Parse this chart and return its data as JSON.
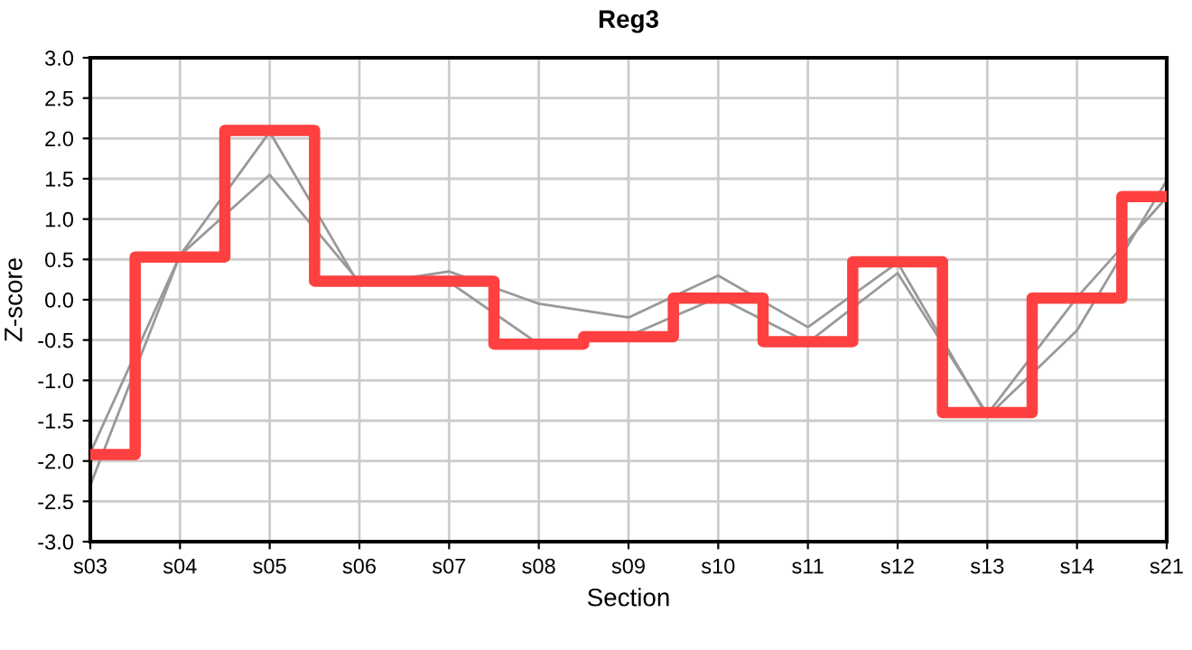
{
  "chart_data": {
    "type": "line",
    "title": "Reg3",
    "xlabel": "Section",
    "ylabel": "Z-score",
    "categories": [
      "s03",
      "s04",
      "s05",
      "s06",
      "s07",
      "s08",
      "s09",
      "s10",
      "s11",
      "s12",
      "s13",
      "s14",
      "s21"
    ],
    "series": [
      {
        "color": "#999999",
        "values": [
          -1.9,
          0.55,
          2.08,
          0.18,
          0.35,
          -0.05,
          -0.22,
          0.3,
          -0.34,
          0.46,
          -1.45,
          -0.38,
          1.48
        ]
      },
      {
        "color": "#999999",
        "values": [
          -2.3,
          0.55,
          1.55,
          0.22,
          0.22,
          -0.55,
          -0.45,
          0.03,
          -0.53,
          0.33,
          -1.42,
          0.03,
          1.27
        ]
      },
      {
        "type": "step",
        "color": "#ff4040",
        "values": [
          -1.92,
          0.53,
          2.1,
          0.23,
          0.23,
          -0.55,
          -0.46,
          0.02,
          -0.52,
          0.47,
          -1.4,
          0.02,
          1.28
        ]
      }
    ],
    "ylim": [
      -3.0,
      3.0
    ],
    "yticks": [
      {
        "value": -3.0,
        "label": "-3.0"
      },
      {
        "value": -2.5,
        "label": "-2.5"
      },
      {
        "value": -2.0,
        "label": "-2.0"
      },
      {
        "value": -1.5,
        "label": "-1.5"
      },
      {
        "value": -1.0,
        "label": "-1.0"
      },
      {
        "value": -0.5,
        "label": "-0.5"
      },
      {
        "value": 0,
        "label": "0.0"
      },
      {
        "value": 0.5,
        "label": "0.5"
      },
      {
        "value": 1.0,
        "label": "1.0"
      },
      {
        "value": 1.5,
        "label": "1.5"
      },
      {
        "value": 2.0,
        "label": "2.0"
      },
      {
        "value": 2.5,
        "label": "2.5"
      },
      {
        "value": 3.0,
        "label": "3.0"
      }
    ],
    "grid": true,
    "marker": "none"
  }
}
